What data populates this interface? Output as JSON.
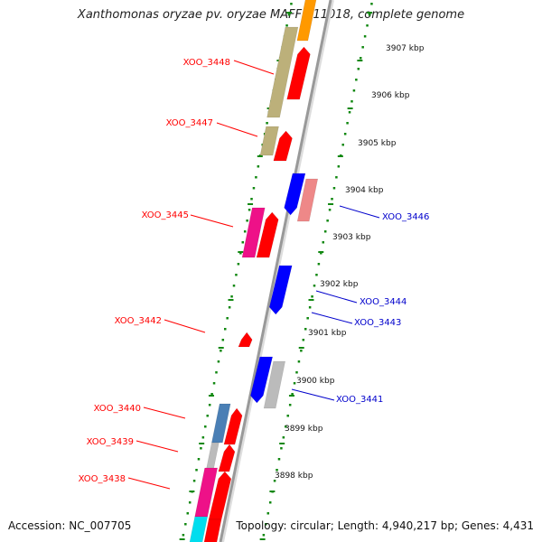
{
  "title": "Xanthomonas oryzae pv. oryzae MAFF 311018, complete genome",
  "footer": {
    "accession": "Accession: NC_007705",
    "topology": "Topology: circular; Length: 4,940,217 bp; Genes: 4,431"
  },
  "scale_labels": [
    "3907 kbp",
    "3906 kbp",
    "3905 kbp",
    "3904 kbp",
    "3903 kbp",
    "3902 kbp",
    "3901 kbp",
    "3900 kbp",
    "3899 kbp",
    "3898 kbp"
  ],
  "gene_labels_left": [
    "XOO_3448",
    "XOO_3447",
    "XOO_3445",
    "XOO_3442",
    "XOO_3440",
    "XOO_3439",
    "XOO_3438"
  ],
  "gene_labels_right": [
    "XOO_3446",
    "XOO_3444",
    "XOO_3443",
    "XOO_3441"
  ],
  "colors": {
    "forward_label": "#ff0000",
    "reverse_label": "#0000cc",
    "red": "#ff0000",
    "blue": "#0000ff",
    "olive": "#bcb07a",
    "magenta": "#ee1188",
    "pink": "#ee8888",
    "gray": "#bbbbbb",
    "steel": "#4a7fb5",
    "orange": "#ff9900",
    "cyan": "#00ddee",
    "tick": "#118811",
    "backbone": "#999999"
  }
}
